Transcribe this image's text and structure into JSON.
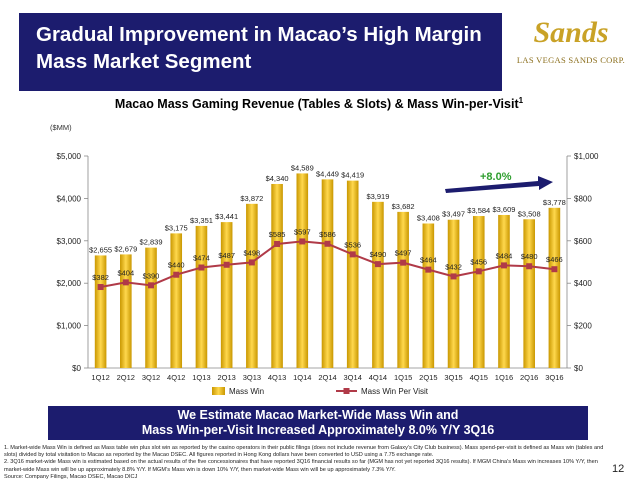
{
  "slide": {
    "title": "Gradual Improvement in Macao’s High Margin\nMass Market Segment",
    "logo_name": "Sands",
    "logo_sub": "LAS VEGAS SANDS CORP.",
    "chart_title": "Macao Mass Gaming Revenue (Tables & Slots) & Mass Win-per-Visit",
    "chart_title_sup": "1",
    "bottom_banner": "We Estimate Macao Market-Wide Mass Win and\nMass Win-per-Visit Increased Approximately 8.0% Y/Y 3Q16",
    "footnotes": [
      "1. Market-wide Mass Win is defined as Mass table win plus slot win as reported by the casino operators in their public filings (does not include revenue from Galaxy’s City Club business). Mass spend-per-visit is defined as Mass win (tables and slots) divided by total visitation to Macao as reported by the Macao DSEC. All figures reported in Hong Kong dollars have been converted to USD using a 7.75 exchange rate.",
      "2. 3Q16 market-wide Mass win is estimated based on the actual results of the five concessionaires that have reported 3Q16 financial results so far (MGM has not yet reported 3Q16 results). If MGM China’s Mass win increases 10% Y/Y, then market-wide Mass win will be up approximately 8.8% Y/Y. If MGM’s Mass win is down 10% Y/Y, then market-wide Mass win will be up approximately 7.3% Y/Y.",
      "Source: Company Filings, Macao DSEC, Macao DICJ"
    ],
    "page_number": "12"
  },
  "chart_data": {
    "type": "bar",
    "categories": [
      "1Q12",
      "2Q12",
      "3Q12",
      "4Q12",
      "1Q13",
      "2Q13",
      "3Q13",
      "4Q13",
      "1Q14",
      "2Q14",
      "3Q14",
      "4Q14",
      "1Q15",
      "2Q15",
      "3Q15",
      "4Q15",
      "1Q16",
      "2Q16",
      "3Q16"
    ],
    "series": [
      {
        "name": "Mass Win",
        "type": "bar",
        "axis": "left",
        "color": "#e6b800",
        "values": [
          2655,
          2679,
          2839,
          3175,
          3351,
          3441,
          3872,
          4340,
          4589,
          4449,
          4419,
          3919,
          3682,
          3408,
          3497,
          3584,
          3609,
          3508,
          3778
        ],
        "labels": [
          "$2,655",
          "$2,679",
          "$2,839",
          "$3,175",
          "$3,351",
          "$3,441",
          "$3,872",
          "$4,340",
          "$4,589",
          "$4,449",
          "$4,419",
          "$3,919",
          "$3,682",
          "$3,408",
          "$3,497",
          "$3,584",
          "$3,609",
          "$3,508",
          "$3,778"
        ]
      },
      {
        "name": "Mass Win Per Visit",
        "type": "line",
        "axis": "right",
        "color": "#b03a48",
        "values": [
          382,
          404,
          390,
          440,
          474,
          487,
          498,
          585,
          597,
          586,
          536,
          490,
          497,
          464,
          432,
          456,
          484,
          480,
          466
        ],
        "labels": [
          "$382",
          "$404",
          "$390",
          "$440",
          "$474",
          "$487",
          "$498",
          "$585",
          "$597",
          "$586",
          "$536",
          "$490",
          "$497",
          "$464",
          "$432",
          "$456",
          "$484",
          "$480",
          "$466"
        ]
      }
    ],
    "unit_label": "($MM)",
    "y_left": {
      "min": 0,
      "max": 5000,
      "ticks": [
        "$0",
        "$1,000",
        "$2,000",
        "$3,000",
        "$4,000",
        "$5,000"
      ]
    },
    "y_right": {
      "min": 0,
      "max": 1000,
      "ticks": [
        "$0",
        "$200",
        "$400",
        "$600",
        "$800",
        "$1,000"
      ]
    },
    "annotation": "+8.0%",
    "annotation_color": "#2e9e2e",
    "arrow_color": "#1c1c6e",
    "legend_position": "bottom",
    "grid": false
  }
}
